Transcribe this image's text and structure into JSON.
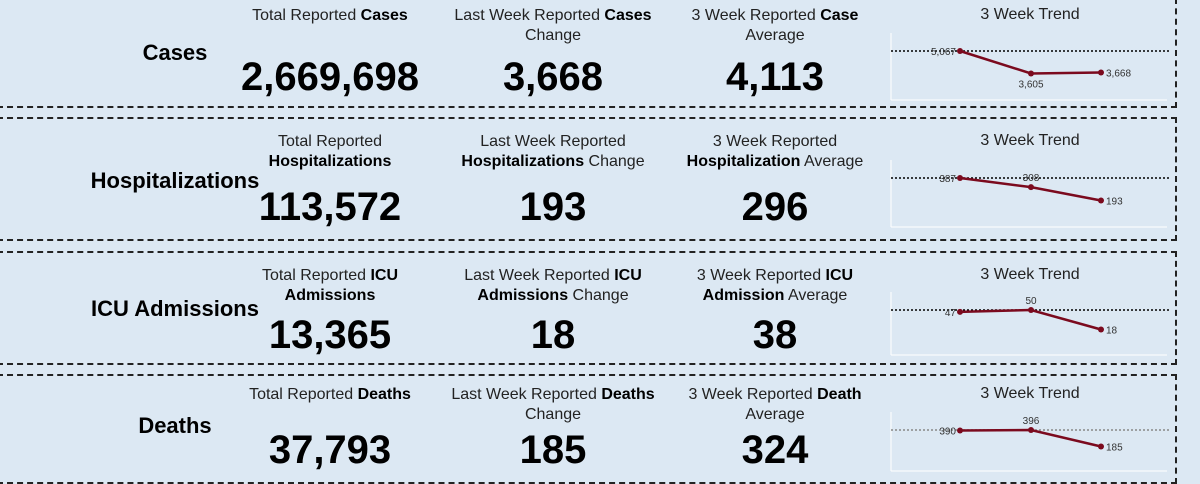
{
  "rows": [
    {
      "label": "Cases",
      "total": {
        "pre": "Total Reported ",
        "bold": "Cases",
        "post": "",
        "value": "2,669,698"
      },
      "change": {
        "pre": "Last Week Reported ",
        "bold": "Cases",
        "post": " Change",
        "value": "3,668"
      },
      "average": {
        "pre": "3 Week Reported ",
        "bold": "Case",
        "post": " Average",
        "value": "4,113"
      },
      "trend": {
        "title": "3 Week Trend",
        "values": [
          5067,
          3605,
          3668
        ],
        "labels": [
          "5,067",
          "3,605",
          "3,668"
        ]
      }
    },
    {
      "label": "Hospitalizations",
      "total": {
        "pre": "Total Reported ",
        "bold": "Hospitalizations",
        "post": "",
        "value": "113,572"
      },
      "change": {
        "pre": "Last Week Reported ",
        "bold": "Hospitalizations",
        "post": " Change",
        "value": "193"
      },
      "average": {
        "pre": "3 Week Reported ",
        "bold": "Hospitalization",
        "post": " Average",
        "value": "296"
      },
      "trend": {
        "title": "3 Week Trend",
        "values": [
          387,
          308,
          193
        ],
        "labels": [
          "387",
          "308",
          "193"
        ]
      }
    },
    {
      "label": "ICU Admissions",
      "total": {
        "pre": "Total Reported ",
        "bold": "ICU Admissions",
        "post": "",
        "value": "13,365"
      },
      "change": {
        "pre": "Last Week Reported ",
        "bold": "ICU Admissions",
        "post": " Change",
        "value": "18"
      },
      "average": {
        "pre": "3 Week Reported ",
        "bold": "ICU Admission",
        "post": " Average",
        "value": "38"
      },
      "trend": {
        "title": "3 Week Trend",
        "values": [
          47,
          50,
          18
        ],
        "labels": [
          "47",
          "50",
          "18"
        ]
      }
    },
    {
      "label": "Deaths",
      "total": {
        "pre": "Total Reported ",
        "bold": "Deaths",
        "post": "",
        "value": "37,793"
      },
      "change": {
        "pre": "Last Week Reported ",
        "bold": "Deaths",
        "post": " Change",
        "value": "185"
      },
      "average": {
        "pre": "3 Week Reported ",
        "bold": "Death",
        "post": " Average",
        "value": "324"
      },
      "trend": {
        "title": "3 Week Trend",
        "values": [
          390,
          396,
          185
        ],
        "labels": [
          "390",
          "396",
          "185"
        ]
      }
    }
  ],
  "colors": {
    "background": "#dce8f3",
    "trend_line": "#7b0a1e"
  }
}
